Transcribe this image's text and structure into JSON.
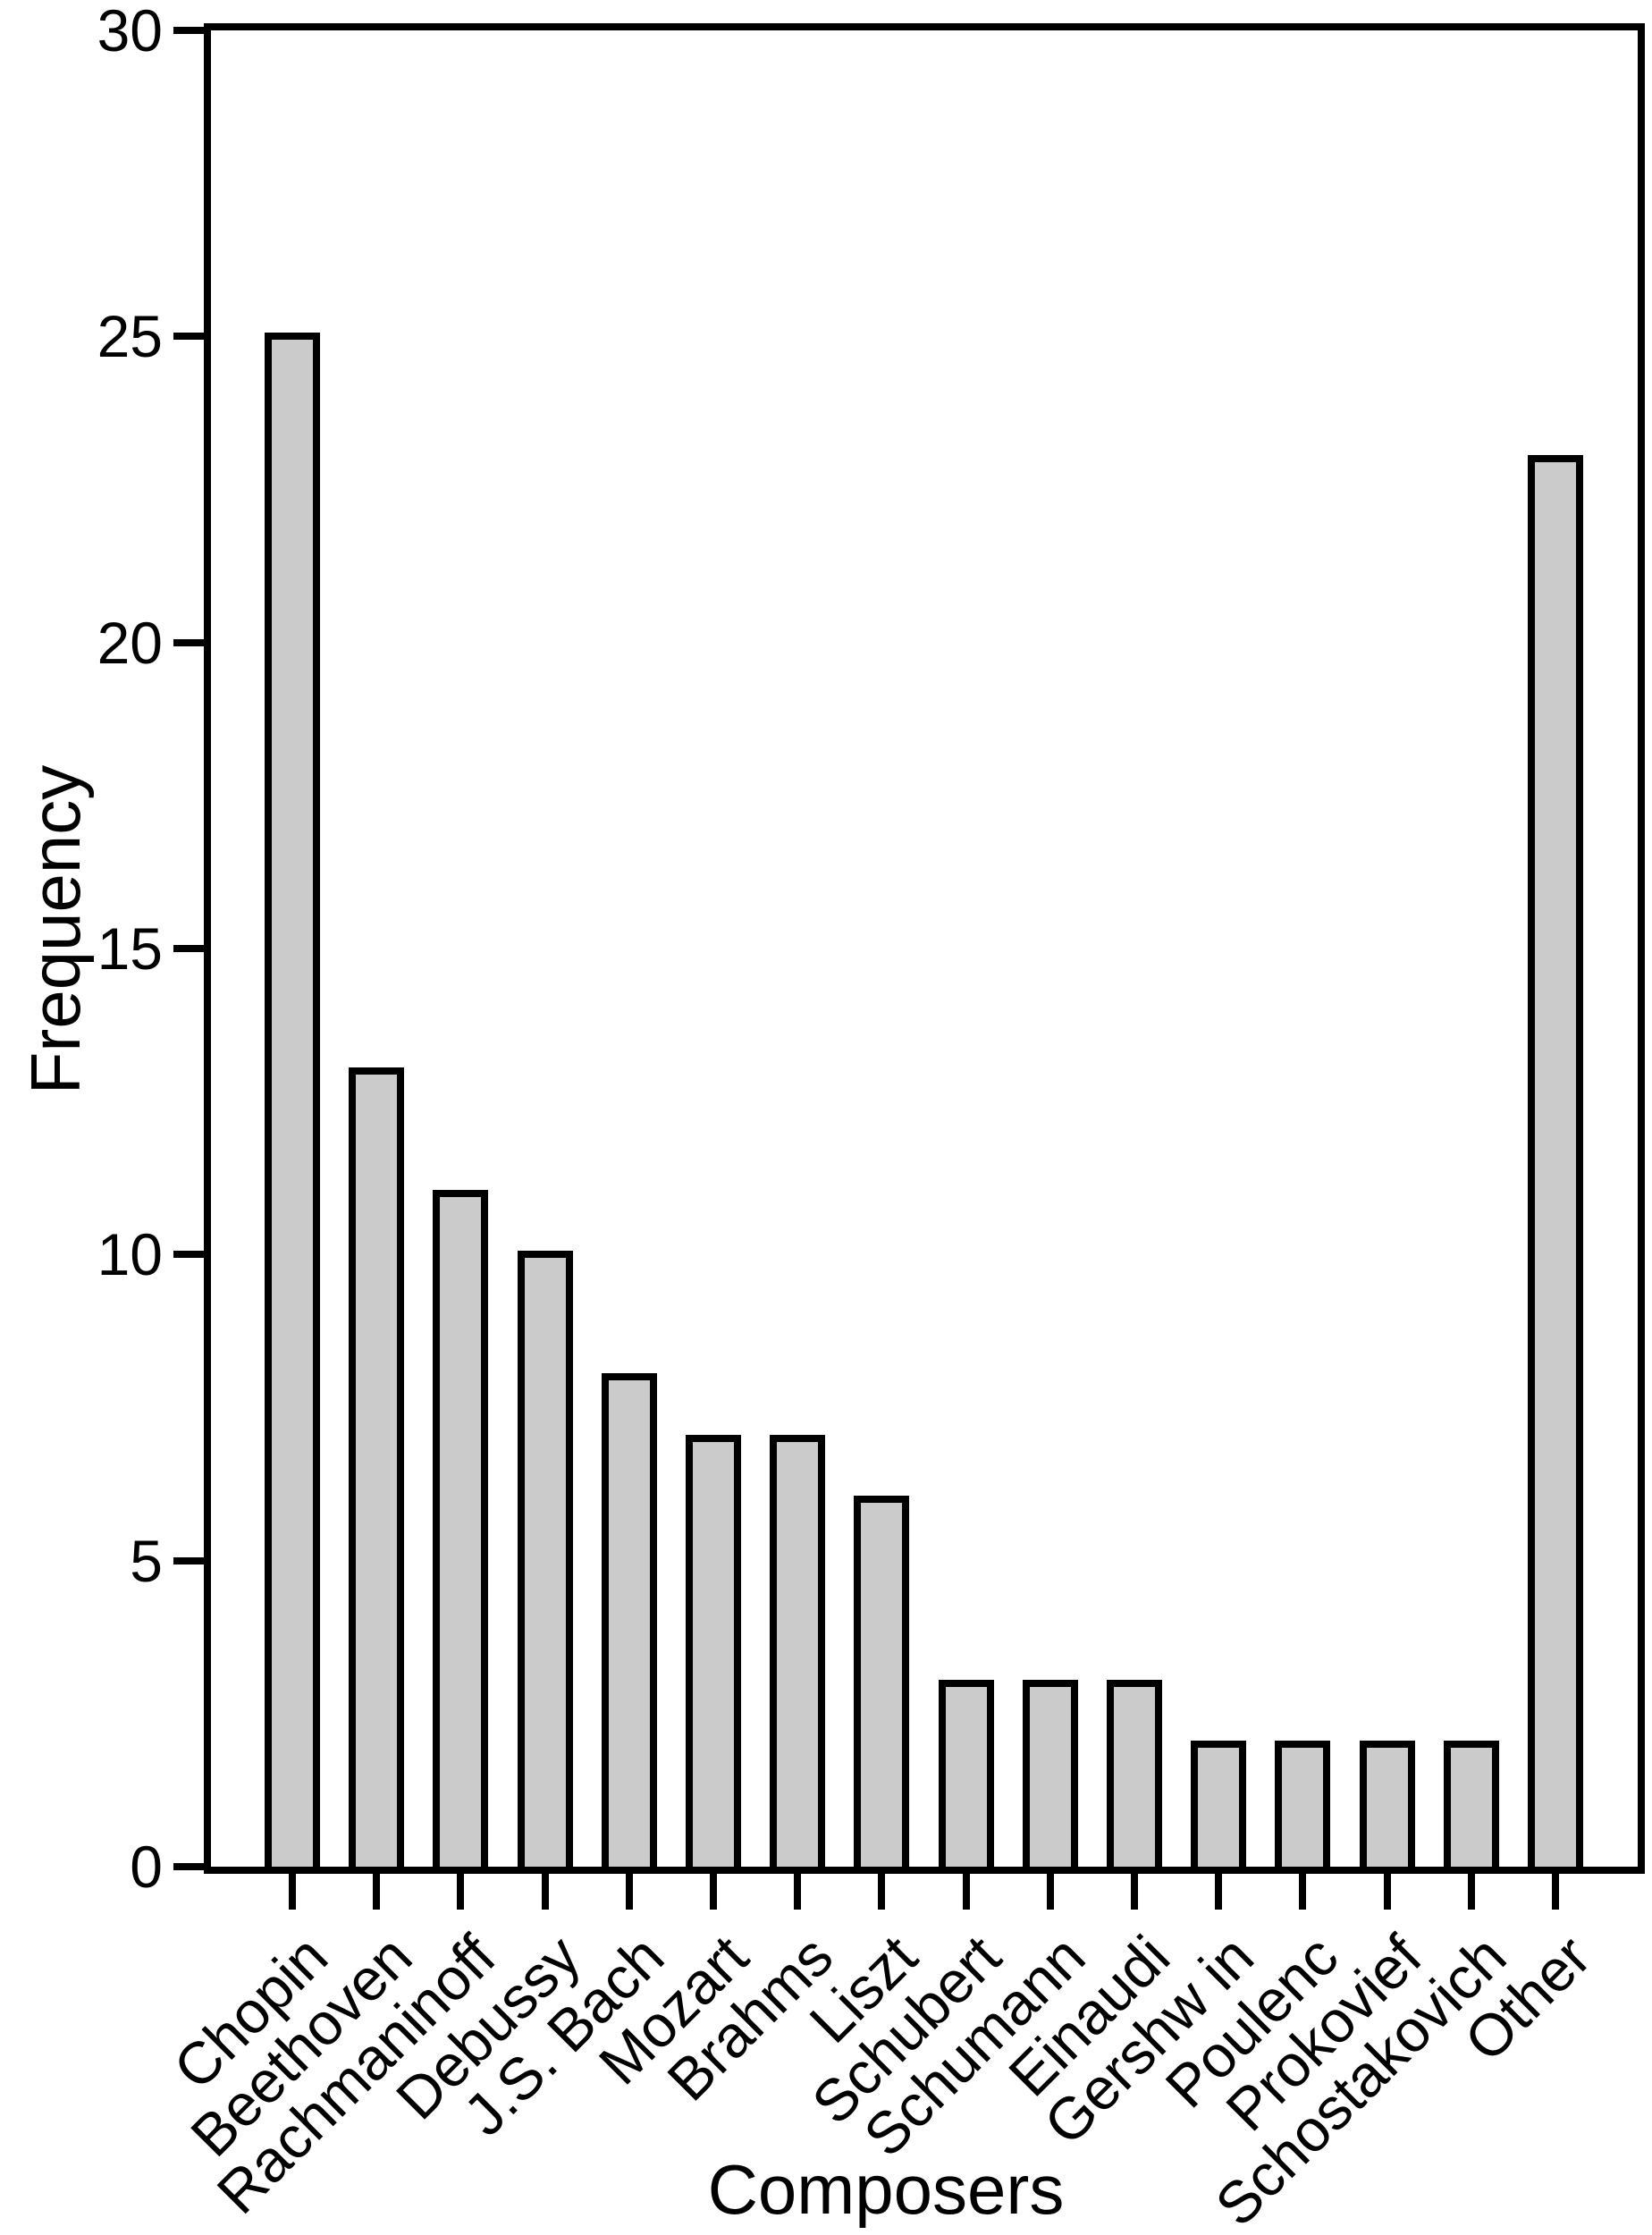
{
  "chart_data": {
    "type": "bar",
    "title": "",
    "xlabel": "Composers",
    "ylabel": "Frequency",
    "categories": [
      "Chopin",
      "Beethoven",
      "Rachmaninoff",
      "Debussy",
      "J.S. Bach",
      "Mozart",
      "Brahms",
      "Liszt",
      "Schubert",
      "Schumann",
      "Einaudi",
      "Gershw in",
      "Poulenc",
      "Prokovief",
      "Schostakovich",
      "Other"
    ],
    "values": [
      25,
      13,
      11,
      10,
      8,
      7,
      7,
      6,
      3,
      3,
      3,
      2,
      2,
      2,
      2,
      23
    ],
    "ylim": [
      0,
      30
    ],
    "yticks": [
      0,
      5,
      10,
      15,
      20,
      25,
      30
    ],
    "grid": false,
    "legend": "none",
    "bar_fill_color": "#cbcbcb",
    "bar_stroke_color": "#000000",
    "axis_color": "#000000",
    "background_color": "#ffffff"
  }
}
